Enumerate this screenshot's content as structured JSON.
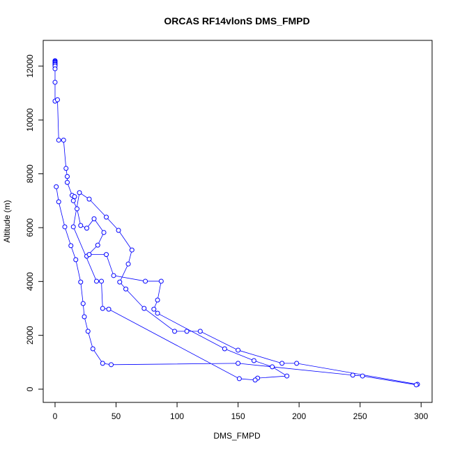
{
  "chart_data": {
    "type": "line",
    "title": "ORCAS RF14vlonS DMS_FMPD",
    "x_label": "DMS_FMPD",
    "y_label": "Altitude (m)",
    "color": "#0000ff",
    "x": [
      0,
      0,
      0,
      0,
      0,
      0,
      0,
      0,
      0,
      0,
      2,
      3,
      7,
      9,
      10,
      10,
      14,
      16,
      15,
      18,
      21,
      26,
      32,
      40,
      35,
      26,
      28,
      42,
      48,
      74,
      87,
      84,
      81,
      84,
      139,
      163,
      178,
      190,
      166,
      164,
      151,
      44,
      39,
      38,
      34,
      15,
      20,
      28,
      42,
      52,
      63,
      60,
      53,
      58,
      73,
      98,
      108,
      119,
      150,
      186,
      198,
      297,
      296,
      252,
      244,
      150,
      46,
      39,
      31,
      27,
      24,
      23,
      21,
      17,
      13,
      8,
      3,
      1
    ],
    "y": [
      12200,
      12180,
      12150,
      12120,
      12080,
      12050,
      12000,
      11900,
      11400,
      10700,
      10750,
      9250,
      9250,
      8200,
      7900,
      7680,
      7200,
      7150,
      7000,
      6700,
      6080,
      5980,
      6330,
      5820,
      5350,
      4940,
      5000,
      5000,
      4220,
      4010,
      4010,
      3310,
      2970,
      2820,
      1500,
      1060,
      830,
      490,
      410,
      340,
      390,
      2970,
      3000,
      4010,
      4010,
      6030,
      7300,
      7060,
      6390,
      5900,
      5170,
      4650,
      3980,
      3720,
      3000,
      2150,
      2150,
      2150,
      1450,
      960,
      960,
      180,
      160,
      490,
      520,
      960,
      910,
      960,
      1500,
      2150,
      2690,
      3180,
      3980,
      4810,
      5330,
      6030,
      6960,
      7520
    ],
    "xlim": [
      -9.7,
      309
    ],
    "ylim": [
      -491,
      12956
    ],
    "xticks": [
      0,
      50,
      100,
      150,
      200,
      250,
      300
    ],
    "yticks": [
      0,
      2000,
      4000,
      6000,
      8000,
      10000,
      12000
    ]
  }
}
